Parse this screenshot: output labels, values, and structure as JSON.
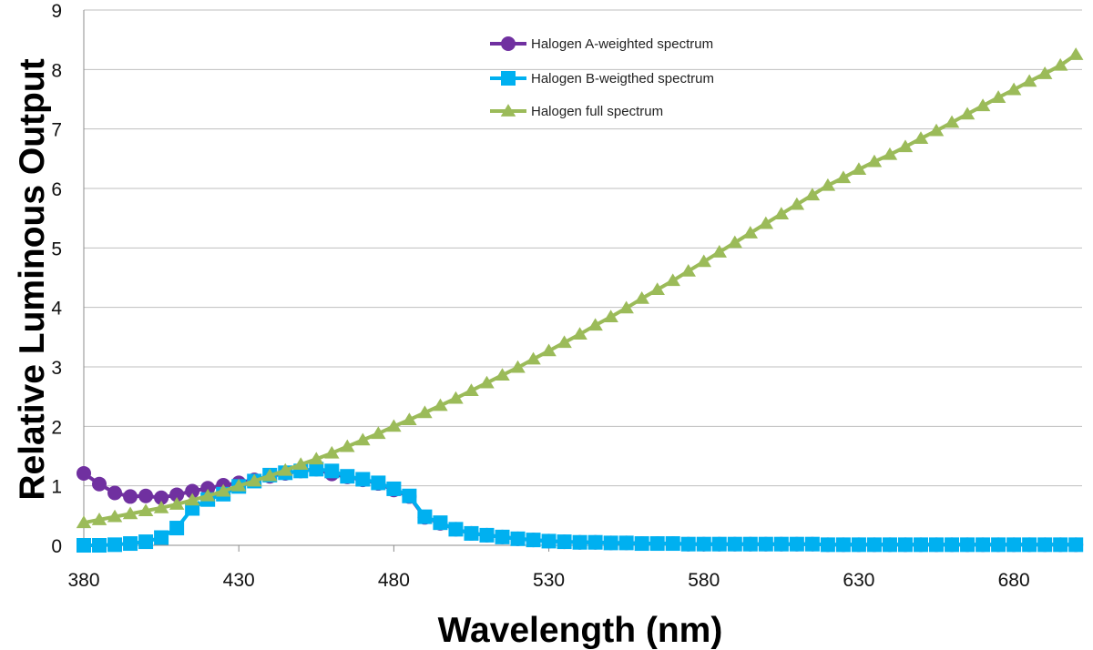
{
  "chart_data": {
    "type": "line",
    "title": "",
    "xlabel": "Wavelength (nm)",
    "ylabel": "Relative Luminous Output",
    "xlim": [
      380,
      702
    ],
    "ylim": [
      0,
      9
    ],
    "xticks": [
      380,
      430,
      480,
      530,
      580,
      630,
      680
    ],
    "yticks": [
      0,
      1,
      2,
      3,
      4,
      5,
      6,
      7,
      8,
      9
    ],
    "grid": "horizontal",
    "legend_position": "top-center",
    "x_start": 380,
    "x_step": 5,
    "series": [
      {
        "name": "Halogen A-weighted spectrum",
        "color": "#7030A0",
        "marker": "circle",
        "values": [
          1.21,
          1.03,
          0.88,
          0.82,
          0.83,
          0.8,
          0.85,
          0.91,
          0.96,
          1.01,
          1.05,
          1.1,
          1.16,
          1.21,
          1.25,
          1.28,
          1.2,
          1.15,
          1.1,
          1.04,
          0.93,
          0.82,
          0.47,
          0.37,
          0.27,
          0.2,
          0.17,
          0.14,
          0.11,
          0.09,
          0.07,
          0.06,
          0.05,
          0.05,
          0.04,
          0.04,
          0.03,
          0.03,
          0.03,
          0.02,
          0.02,
          0.02,
          0.02,
          0.02,
          0.02,
          0.02,
          0.02,
          0.02,
          0.01,
          0.01,
          0.01,
          0.01,
          0.01,
          0.01,
          0.01,
          0.01,
          0.01,
          0.01,
          0.01,
          0.01,
          0.01,
          0.01,
          0.01,
          0.01,
          0.01
        ]
      },
      {
        "name": "Halogen B-weigthed spectrum",
        "color": "#00B0F0",
        "marker": "square",
        "values": [
          0.0,
          0.0,
          0.01,
          0.03,
          0.06,
          0.13,
          0.29,
          0.62,
          0.77,
          0.86,
          0.99,
          1.08,
          1.18,
          1.22,
          1.25,
          1.28,
          1.25,
          1.16,
          1.11,
          1.05,
          0.95,
          0.83,
          0.48,
          0.38,
          0.27,
          0.2,
          0.17,
          0.14,
          0.11,
          0.09,
          0.07,
          0.06,
          0.05,
          0.05,
          0.04,
          0.04,
          0.03,
          0.03,
          0.03,
          0.02,
          0.02,
          0.02,
          0.02,
          0.02,
          0.02,
          0.02,
          0.02,
          0.02,
          0.01,
          0.01,
          0.01,
          0.01,
          0.01,
          0.01,
          0.01,
          0.01,
          0.01,
          0.01,
          0.01,
          0.01,
          0.01,
          0.01,
          0.01,
          0.01,
          0.01
        ]
      },
      {
        "name": "Halogen full spectrum",
        "color": "#9BBB59",
        "marker": "triangle",
        "values": [
          0.38,
          0.43,
          0.48,
          0.53,
          0.58,
          0.63,
          0.69,
          0.76,
          0.83,
          0.91,
          1.0,
          1.08,
          1.17,
          1.26,
          1.36,
          1.45,
          1.55,
          1.66,
          1.77,
          1.88,
          2.0,
          2.11,
          2.23,
          2.35,
          2.47,
          2.6,
          2.73,
          2.86,
          2.99,
          3.13,
          3.27,
          3.41,
          3.55,
          3.7,
          3.84,
          3.99,
          4.15,
          4.3,
          4.45,
          4.61,
          4.77,
          4.93,
          5.09,
          5.25,
          5.41,
          5.57,
          5.73,
          5.89,
          6.05,
          6.18,
          6.32,
          6.45,
          6.57,
          6.7,
          6.84,
          6.97,
          7.11,
          7.25,
          7.39,
          7.53,
          7.66,
          7.8,
          7.93,
          8.07,
          8.25
        ]
      }
    ]
  }
}
